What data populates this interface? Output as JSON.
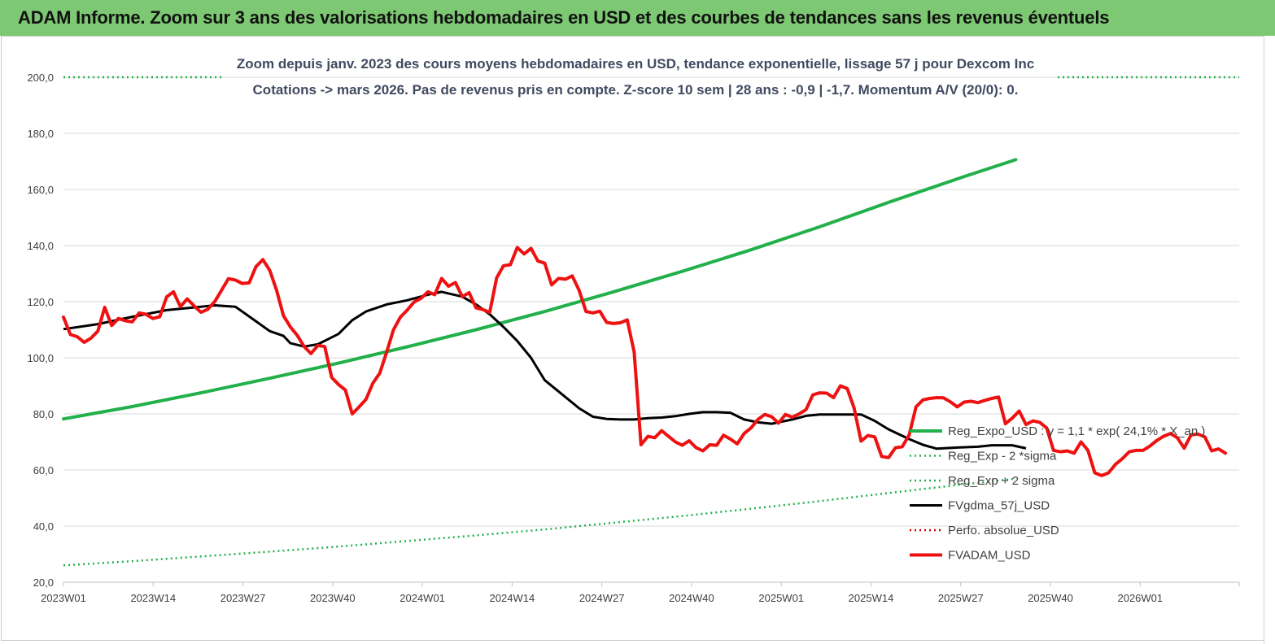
{
  "header": {
    "title": "ADAM Informe. Zoom sur 3 ans des valorisations hebdomadaires en USD et des courbes de tendances sans les revenus éventuels"
  },
  "chart_data": {
    "type": "line",
    "title_lines": [
      "Zoom depuis janv. 2023 des cours moyens hebdomadaires en USD, tendance exponentielle, lissage 57 j pour Dexcom Inc",
      "Cotations -> mars 2026. Pas de revenus pris en  compte. Z-score 10 sem  | 28 ans : -0,9 | -1,7. Momentum A/V (20/0): 0."
    ],
    "xlabel": "",
    "ylabel": "",
    "ylim": [
      20,
      200
    ],
    "y_ticks": [
      "20,0",
      "40,0",
      "60,0",
      "80,0",
      "100,0",
      "120,0",
      "140,0",
      "160,0",
      "180,0",
      "200,0"
    ],
    "x_ticks": [
      "2023W01",
      "2023W14",
      "2023W27",
      "2023W40",
      "2024W01",
      "2024W14",
      "2024W27",
      "2024W40",
      "2025W01",
      "2025W14",
      "2025W27",
      "2025W40",
      "2026W01"
    ],
    "grid": true,
    "legend_position": "bottom-right",
    "colors": {
      "regression": "#22b04b",
      "sigma": "#22b04b",
      "smoothed": "#000000",
      "perf": "#d00000",
      "price": "#ee1111"
    },
    "series": [
      {
        "name": "Reg_Expo_USD : y = 1,1 * exp( 24,1% *  X_an )",
        "style": "solid-thick",
        "color_key": "regression",
        "points": [
          [
            0,
            78.2
          ],
          [
            20,
            82.6
          ],
          [
            40,
            87.5
          ],
          [
            60,
            92.7
          ],
          [
            80,
            98.1
          ],
          [
            100,
            103.9
          ],
          [
            120,
            110
          ],
          [
            140,
            116.5
          ],
          [
            160,
            123.5
          ],
          [
            180,
            130.8
          ],
          [
            200,
            138.5
          ],
          [
            220,
            146.7
          ],
          [
            240,
            155.4
          ],
          [
            262,
            164.6
          ],
          [
            277,
            170.6
          ]
        ]
      },
      {
        "name": "Reg_Exp - 2 *sigma",
        "style": "dotted",
        "color_key": "sigma",
        "points": [
          [
            0,
            200
          ],
          [
            277,
            200
          ]
        ]
      },
      {
        "name": "Reg_Exp + 2 sigma",
        "style": "dotted",
        "color_key": "sigma",
        "points": [
          [
            0,
            26
          ],
          [
            20,
            27.5
          ],
          [
            40,
            29.2
          ],
          [
            60,
            30.9
          ],
          [
            80,
            32.7
          ],
          [
            100,
            34.7
          ],
          [
            120,
            36.7
          ],
          [
            140,
            38.8
          ],
          [
            160,
            41.2
          ],
          [
            180,
            43.6
          ],
          [
            200,
            46.2
          ],
          [
            220,
            48.9
          ],
          [
            240,
            51.8
          ],
          [
            262,
            54.9
          ],
          [
            277,
            56.9
          ]
        ]
      },
      {
        "name": "FVgdma_57j_USD",
        "style": "solid",
        "color_key": "smoothed",
        "points": [
          [
            0,
            110.2
          ],
          [
            10,
            112
          ],
          [
            20,
            114.6
          ],
          [
            30,
            117
          ],
          [
            40,
            118.2
          ],
          [
            44,
            118.7
          ],
          [
            50,
            118.2
          ],
          [
            56,
            113
          ],
          [
            60,
            109.5
          ],
          [
            64,
            107.8
          ],
          [
            66,
            105.2
          ],
          [
            70,
            104
          ],
          [
            74,
            104.8
          ],
          [
            80,
            108.5
          ],
          [
            84,
            113.4
          ],
          [
            88,
            116.5
          ],
          [
            94,
            119
          ],
          [
            100,
            120.5
          ],
          [
            106,
            122.5
          ],
          [
            110,
            123.5
          ],
          [
            116,
            121.8
          ],
          [
            120,
            119
          ],
          [
            124,
            115.5
          ],
          [
            128,
            111
          ],
          [
            132,
            106
          ],
          [
            136,
            100
          ],
          [
            140,
            92
          ],
          [
            146,
            86
          ],
          [
            150,
            82
          ],
          [
            154,
            79
          ],
          [
            158,
            78.2
          ],
          [
            162,
            78
          ],
          [
            166,
            78
          ],
          [
            170,
            78.5
          ],
          [
            174,
            78.7
          ],
          [
            178,
            79.2
          ],
          [
            182,
            80
          ],
          [
            186,
            80.6
          ],
          [
            190,
            80.6
          ],
          [
            194,
            80.4
          ],
          [
            198,
            78
          ],
          [
            202,
            77
          ],
          [
            206,
            76.5
          ],
          [
            212,
            78
          ],
          [
            216,
            79.3
          ],
          [
            220,
            79.8
          ],
          [
            226,
            79.8
          ],
          [
            232,
            79.8
          ],
          [
            236,
            77.5
          ],
          [
            240,
            74.5
          ],
          [
            246,
            71
          ],
          [
            250,
            69
          ],
          [
            254,
            67.6
          ],
          [
            260,
            68
          ],
          [
            266,
            68.3
          ],
          [
            270,
            68.8
          ],
          [
            276,
            68.8
          ],
          [
            280,
            67.7
          ]
        ]
      },
      {
        "name": "Perfo. absolue_USD",
        "style": "dotted",
        "color_key": "perf",
        "points": []
      },
      {
        "name": "FVADAM_USD",
        "style": "solid-thick",
        "color_key": "price",
        "points": [
          [
            0,
            114.5
          ],
          [
            2,
            108.3
          ],
          [
            4,
            107.5
          ],
          [
            6,
            105.5
          ],
          [
            8,
            107
          ],
          [
            10,
            109.5
          ],
          [
            12,
            118
          ],
          [
            14,
            111.5
          ],
          [
            16,
            114
          ],
          [
            18,
            113.2
          ],
          [
            20,
            112.8
          ],
          [
            22,
            116
          ],
          [
            24,
            115.5
          ],
          [
            26,
            114
          ],
          [
            28,
            114.6
          ],
          [
            30,
            121.7
          ],
          [
            32,
            123.5
          ],
          [
            34,
            118.2
          ],
          [
            36,
            121
          ],
          [
            38,
            118.5
          ],
          [
            40,
            116.2
          ],
          [
            42,
            117.3
          ],
          [
            44,
            120
          ],
          [
            48,
            128.2
          ],
          [
            50,
            127.7
          ],
          [
            52,
            126.5
          ],
          [
            54,
            126.7
          ],
          [
            56,
            132.5
          ],
          [
            58,
            135
          ],
          [
            60,
            131.2
          ],
          [
            62,
            124
          ],
          [
            64,
            115
          ],
          [
            66,
            111
          ],
          [
            68,
            108
          ],
          [
            70,
            104
          ],
          [
            72,
            101.5
          ],
          [
            74,
            104.4
          ],
          [
            76,
            104
          ],
          [
            78,
            93
          ],
          [
            80,
            90.5
          ],
          [
            82,
            88.5
          ],
          [
            84,
            80
          ],
          [
            86,
            82.5
          ],
          [
            88,
            85.2
          ],
          [
            90,
            91
          ],
          [
            92,
            94.5
          ],
          [
            94,
            102
          ],
          [
            96,
            110
          ],
          [
            98,
            114.5
          ],
          [
            100,
            117
          ],
          [
            102,
            119.9
          ],
          [
            104,
            121.2
          ],
          [
            106,
            123.5
          ],
          [
            108,
            122.5
          ],
          [
            110,
            128.3
          ],
          [
            112,
            125.5
          ],
          [
            114,
            126.8
          ],
          [
            116,
            121.8
          ],
          [
            118,
            123.2
          ],
          [
            120,
            117.8
          ],
          [
            122,
            117.2
          ],
          [
            124,
            116.2
          ],
          [
            126,
            128.5
          ],
          [
            128,
            132.8
          ],
          [
            130,
            133.2
          ],
          [
            132,
            139.3
          ],
          [
            134,
            137
          ],
          [
            136,
            139
          ],
          [
            138,
            134.5
          ],
          [
            140,
            133.7
          ],
          [
            142,
            126
          ],
          [
            144,
            128.3
          ],
          [
            146,
            128
          ],
          [
            148,
            129.2
          ],
          [
            150,
            124
          ],
          [
            152,
            116.5
          ],
          [
            154,
            116
          ],
          [
            156,
            116.6
          ],
          [
            158,
            112.6
          ],
          [
            160,
            112.2
          ],
          [
            162,
            112.5
          ],
          [
            164,
            113.5
          ],
          [
            166,
            102
          ],
          [
            168,
            69
          ],
          [
            170,
            72
          ],
          [
            172,
            71.5
          ],
          [
            174,
            74
          ],
          [
            176,
            72
          ],
          [
            178,
            70
          ],
          [
            180,
            68.8
          ],
          [
            182,
            70.4
          ],
          [
            184,
            68
          ],
          [
            186,
            66.8
          ],
          [
            188,
            69
          ],
          [
            190,
            68.8
          ],
          [
            192,
            72.4
          ],
          [
            194,
            71
          ],
          [
            196,
            69.3
          ],
          [
            198,
            73
          ],
          [
            200,
            75
          ],
          [
            202,
            78
          ],
          [
            204,
            79.8
          ],
          [
            206,
            79
          ],
          [
            208,
            76.7
          ],
          [
            210,
            79.8
          ],
          [
            212,
            78.8
          ],
          [
            214,
            80
          ],
          [
            216,
            81.5
          ],
          [
            218,
            86.8
          ],
          [
            220,
            87.5
          ],
          [
            222,
            87.4
          ],
          [
            224,
            85.8
          ],
          [
            226,
            90
          ],
          [
            228,
            89
          ],
          [
            230,
            82
          ],
          [
            232,
            70.3
          ],
          [
            234,
            72.3
          ],
          [
            236,
            71.8
          ],
          [
            238,
            64.8
          ],
          [
            240,
            64.4
          ],
          [
            242,
            67.9
          ],
          [
            244,
            68.3
          ],
          [
            246,
            72.5
          ],
          [
            248,
            82.5
          ],
          [
            250,
            85
          ],
          [
            252,
            85.5
          ],
          [
            254,
            85.8
          ],
          [
            256,
            85.7
          ],
          [
            258,
            84.3
          ],
          [
            260,
            82.5
          ],
          [
            262,
            84.2
          ],
          [
            264,
            84.5
          ],
          [
            266,
            84
          ],
          [
            268,
            84.8
          ],
          [
            270,
            85.5
          ],
          [
            272,
            86
          ],
          [
            274,
            76.5
          ],
          [
            276,
            78.5
          ],
          [
            278,
            81
          ],
          [
            280,
            76.2
          ],
          [
            282,
            77.5
          ],
          [
            284,
            77
          ],
          [
            286,
            75
          ],
          [
            288,
            67
          ],
          [
            290,
            66.5
          ],
          [
            292,
            66.8
          ],
          [
            294,
            66
          ],
          [
            296,
            70
          ],
          [
            298,
            67
          ],
          [
            300,
            59
          ],
          [
            302,
            58
          ],
          [
            304,
            59
          ],
          [
            306,
            62
          ],
          [
            308,
            64
          ],
          [
            310,
            66.5
          ],
          [
            312,
            67
          ],
          [
            314,
            67
          ],
          [
            316,
            68.5
          ],
          [
            318,
            70.5
          ],
          [
            320,
            72
          ],
          [
            322,
            73
          ],
          [
            324,
            71.5
          ],
          [
            326,
            67.8
          ],
          [
            328,
            72.5
          ],
          [
            330,
            72.8
          ],
          [
            332,
            71.8
          ],
          [
            334,
            66.8
          ],
          [
            336,
            67.5
          ],
          [
            338,
            66
          ]
        ]
      }
    ]
  },
  "legend_labels": {
    "sigma_minus": "Reg_Exp - 2 *sigma",
    "sigma_plus": "Reg_Exp + 2 sigma",
    "smoothed": "FVgdma_57j_USD",
    "perf": "Perfo. absolue_USD",
    "price": "FVADAM_USD",
    "regression": "Reg_Expo_USD : y = 1,1 * exp( 24,1% *  X_an )"
  }
}
